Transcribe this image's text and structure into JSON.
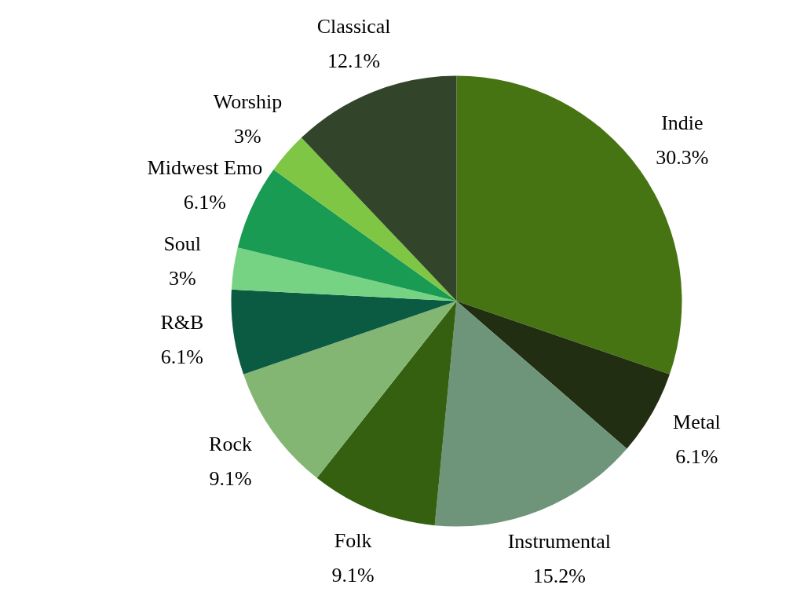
{
  "chart_data": {
    "type": "pie",
    "categories": [
      "Indie",
      "Metal",
      "Instrumental",
      "Folk",
      "Rock",
      "R&B",
      "Soul",
      "Midwest Emo",
      "Worship",
      "Classical"
    ],
    "values": [
      30.3,
      6.1,
      15.2,
      9.1,
      9.1,
      6.1,
      3,
      6.1,
      3,
      12.1
    ],
    "value_labels": [
      "30.3%",
      "6.1%",
      "15.2%",
      "9.1%",
      "9.1%",
      "6.1%",
      "3%",
      "6.1%",
      "3%",
      "12.1%"
    ],
    "colors": [
      "#477413",
      "#222e12",
      "#6e957a",
      "#34600f",
      "#84b673",
      "#0b5b43",
      "#77d384",
      "#199b53",
      "#7fc644",
      "#32452a"
    ]
  }
}
